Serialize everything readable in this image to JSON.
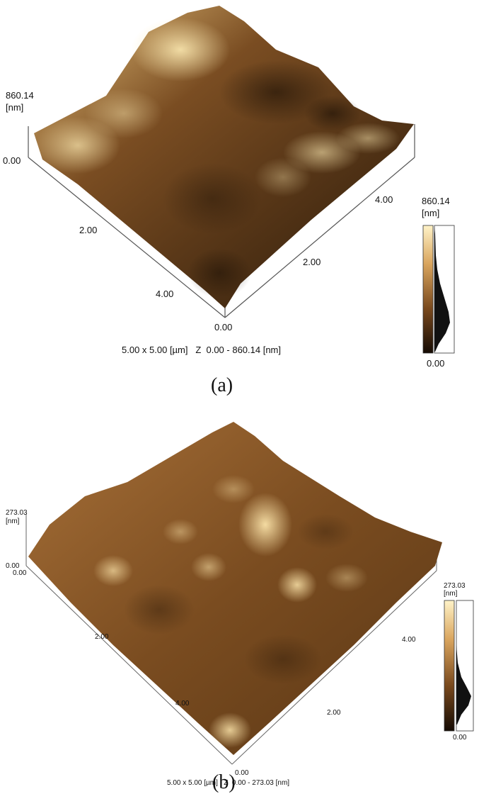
{
  "panels": [
    {
      "id": "a",
      "caption": "(a)",
      "z_axis": {
        "max": "860.14",
        "unit": "[nm]",
        "min": "0.00"
      },
      "x_axis_ticks": [
        "2.00",
        "4.00"
      ],
      "y_axis_ticks": [
        "0.00",
        "2.00",
        "4.00"
      ],
      "scan_info": "5.00 x 5.00 [µm]   Z  0.00 - 860.14 [nm]",
      "colorbar": {
        "max": "860.14",
        "unit": "[nm]",
        "min": "0.00"
      },
      "colors": {
        "light": "#f6e3a6",
        "mid": "#8a5a2a",
        "dark": "#1e1206"
      }
    },
    {
      "id": "b",
      "caption": "(b)",
      "z_axis": {
        "max": "273.03",
        "unit": "[nm]",
        "min": "0.00"
      },
      "origin_label": "0.00",
      "x_axis_ticks": [
        "2.00",
        "4.00"
      ],
      "y_axis_ticks": [
        "0.00",
        "2.00",
        "4.00"
      ],
      "scan_info": "5.00 x 5.00 [µm]   Z  0.00 - 273.03 [nm]",
      "colorbar": {
        "max": "273.03",
        "unit": "[nm]",
        "min": "0.00"
      },
      "colors": {
        "light": "#f6e3a6",
        "mid": "#9a6630",
        "dark": "#1e1206"
      }
    }
  ]
}
